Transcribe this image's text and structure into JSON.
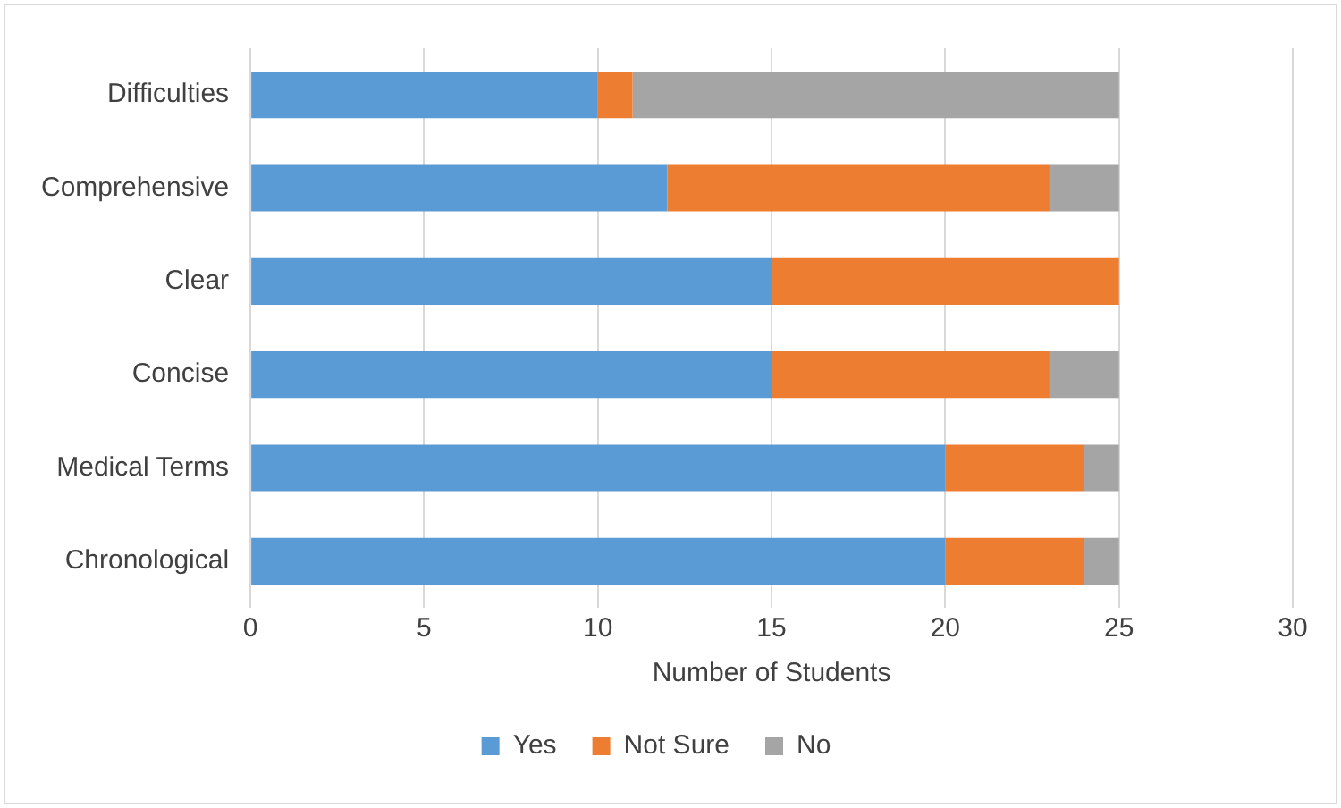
{
  "chart_data": {
    "type": "bar",
    "orientation": "horizontal",
    "stacked": true,
    "categories": [
      "Difficulties",
      "Comprehensive",
      "Clear",
      "Concise",
      "Medical Terms",
      "Chronological"
    ],
    "series": [
      {
        "name": "Yes",
        "color": "#5b9bd5",
        "values": [
          10,
          12,
          15,
          15,
          20,
          20
        ]
      },
      {
        "name": "Not Sure",
        "color": "#ed7d31",
        "values": [
          1,
          11,
          10,
          8,
          4,
          4
        ]
      },
      {
        "name": "No",
        "color": "#a5a5a5",
        "values": [
          14,
          2,
          0,
          2,
          1,
          1
        ]
      }
    ],
    "xlabel": "Number of Students",
    "xlim": [
      0,
      30
    ],
    "xticks": [
      0,
      5,
      10,
      15,
      20,
      25,
      30
    ],
    "grid": "x",
    "legend": "bottom"
  }
}
